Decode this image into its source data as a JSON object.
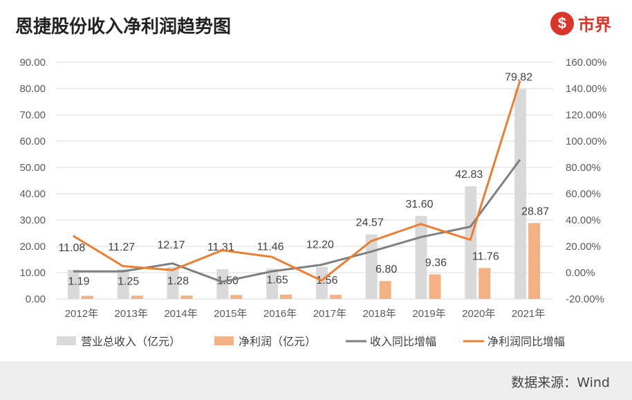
{
  "header": {
    "title": "恩捷股份收入净利润趋势图",
    "logo_text": "市界"
  },
  "footer": {
    "source": "数据来源：Wind"
  },
  "colors": {
    "revenue_bar": "#d9d9d9",
    "profit_bar": "#f4b183",
    "revenue_growth": "#7f7f7f",
    "profit_growth": "#ed7d31"
  },
  "chart_data": {
    "type": "bar+line",
    "categories": [
      "2012年",
      "2013年",
      "2014年",
      "2015年",
      "2016年",
      "2017年",
      "2018年",
      "2019年",
      "2020年",
      "2021年"
    ],
    "series": [
      {
        "name": "营业总收入（亿元）",
        "type": "bar",
        "axis": "left",
        "values": [
          11.08,
          11.27,
          12.17,
          11.31,
          11.46,
          12.2,
          24.57,
          31.6,
          42.83,
          79.82
        ],
        "labels": [
          "11.08",
          "11.27",
          "12.17",
          "11.31",
          "11.46",
          "12.20",
          "24.57",
          "31.60",
          "42.83",
          "79.82"
        ]
      },
      {
        "name": "净利润（亿元）",
        "type": "bar",
        "axis": "left",
        "values": [
          1.19,
          1.25,
          1.28,
          1.5,
          1.65,
          1.56,
          6.8,
          9.36,
          11.76,
          28.87
        ],
        "labels": [
          "1.19",
          "1.25",
          "1.28",
          "1.50",
          "1.65",
          "1.56",
          "6.80",
          "9.36",
          "11.76",
          "28.87"
        ]
      },
      {
        "name": "收入同比增幅",
        "type": "line",
        "axis": "right",
        "values": [
          1,
          1,
          7,
          -7,
          1,
          6,
          16,
          27,
          35,
          86
        ]
      },
      {
        "name": "净利润同比增幅",
        "type": "line",
        "axis": "right",
        "values": [
          28,
          5,
          2,
          17,
          12,
          -6,
          24,
          37,
          25,
          146
        ]
      }
    ],
    "left_axis": {
      "range": [
        0,
        90
      ],
      "ticks": [
        "0.00",
        "10.00",
        "20.00",
        "30.00",
        "40.00",
        "50.00",
        "60.00",
        "70.00",
        "80.00",
        "90.00"
      ]
    },
    "right_axis": {
      "range": [
        -20,
        160
      ],
      "ticks": [
        "-20.00%",
        "0.00%",
        "20.00%",
        "40.00%",
        "60.00%",
        "80.00%",
        "100.00%",
        "120.00%",
        "140.00%",
        "160.00%"
      ]
    },
    "grid": true,
    "legend": "bottom"
  }
}
